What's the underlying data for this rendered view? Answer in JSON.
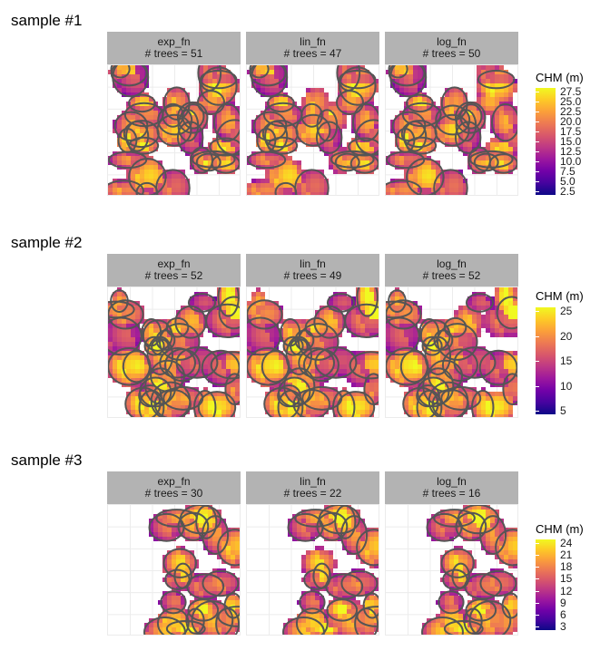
{
  "samples": [
    {
      "title": "sample #1",
      "panels": [
        {
          "name": "exp_fn",
          "trees_label": "# trees = 51"
        },
        {
          "name": "lin_fn",
          "trees_label": "# trees = 47"
        },
        {
          "name": "log_fn",
          "trees_label": "# trees = 50"
        }
      ],
      "legend": {
        "title": "CHM (m)",
        "ticks": [
          "27.5",
          "25.0",
          "22.5",
          "20.0",
          "17.5",
          "15.0",
          "12.5",
          "10.0",
          "7.5",
          "5.0",
          "2.5"
        ]
      }
    },
    {
      "title": "sample #2",
      "panels": [
        {
          "name": "exp_fn",
          "trees_label": "# trees = 52"
        },
        {
          "name": "lin_fn",
          "trees_label": "# trees = 49"
        },
        {
          "name": "log_fn",
          "trees_label": "# trees = 52"
        }
      ],
      "legend": {
        "title": "CHM (m)",
        "ticks": [
          "25",
          "20",
          "15",
          "10",
          "5"
        ]
      }
    },
    {
      "title": "sample #3",
      "panels": [
        {
          "name": "exp_fn",
          "trees_label": "# trees = 30"
        },
        {
          "name": "lin_fn",
          "trees_label": "# trees = 22"
        },
        {
          "name": "log_fn",
          "trees_label": "# trees = 16"
        }
      ],
      "legend": {
        "title": "CHM (m)",
        "ticks": [
          "24",
          "21",
          "18",
          "15",
          "12",
          "9",
          "6",
          "3"
        ]
      }
    }
  ],
  "chart_data": [
    {
      "type": "heatmap",
      "title": "sample #1",
      "facets": [
        "exp_fn",
        "lin_fn",
        "log_fn"
      ],
      "trees": [
        51,
        47,
        50
      ],
      "legend_title": "CHM (m)",
      "color_range": [
        2.5,
        28.5
      ],
      "colormap": "plasma",
      "legend_position": "right"
    },
    {
      "type": "heatmap",
      "title": "sample #2",
      "facets": [
        "exp_fn",
        "lin_fn",
        "log_fn"
      ],
      "trees": [
        52,
        49,
        52
      ],
      "legend_title": "CHM (m)",
      "color_range": [
        3,
        29.5
      ],
      "colormap": "plasma",
      "legend_position": "right"
    },
    {
      "type": "heatmap",
      "title": "sample #3",
      "facets": [
        "exp_fn",
        "lin_fn",
        "log_fn"
      ],
      "trees": [
        30,
        22,
        16
      ],
      "legend_title": "CHM (m)",
      "color_range": [
        3,
        26
      ],
      "colormap": "plasma",
      "legend_position": "right"
    }
  ],
  "colors": {
    "strip_bg": "#b3b3b3",
    "crown_outline": "#555555",
    "plasma": [
      "#0d0887",
      "#46039f",
      "#7201a8",
      "#9c179e",
      "#bd3786",
      "#d8576b",
      "#ed7953",
      "#fb9f3a",
      "#fdca26",
      "#f0f921"
    ]
  }
}
